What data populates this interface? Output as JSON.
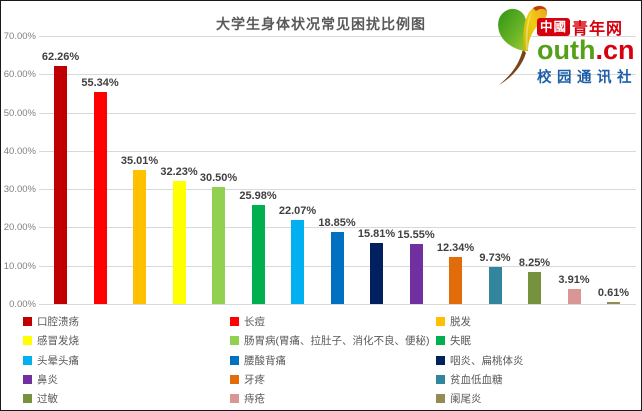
{
  "title": "大学生身体状况常见困扰比例图",
  "logo": {
    "badge_text": "中國",
    "brand_red_text": "青年网",
    "brand_green_text": "outh",
    "brand_domain_text": ".cn",
    "subtitle_text": "校园通讯社",
    "leaf_icon": "ginkgo-leaf-icon",
    "colors": {
      "red": "#d7000f",
      "green": "#55a018",
      "blue": "#1c5fa8"
    }
  },
  "chart_data": {
    "type": "bar",
    "title": "大学生身体状况常见困扰比例图",
    "xlabel": "",
    "ylabel": "",
    "ylim": [
      0,
      70
    ],
    "ytick_labels": [
      "0.00%",
      "10.00%",
      "20.00%",
      "30.00%",
      "40.00%",
      "50.00%",
      "60.00%",
      "70.00%"
    ],
    "grid": true,
    "legend_position": "bottom",
    "legend_columns": 3,
    "categories": [
      "口腔溃疡",
      "长痘",
      "脱发",
      "感冒发烧",
      "肠胃病(胃痛、拉肚子、消化不良、便秘)",
      "失眠",
      "头晕头痛",
      "腰酸背痛",
      "咽炎、扁桃体炎",
      "鼻炎",
      "牙疼",
      "贫血低血糖",
      "过敏",
      "痔疮",
      "阑尾炎"
    ],
    "values": [
      62.26,
      55.34,
      35.01,
      32.23,
      30.5,
      25.98,
      22.07,
      18.85,
      15.81,
      15.55,
      12.34,
      9.73,
      8.25,
      3.91,
      0.61
    ],
    "value_labels": [
      "62.26%",
      "55.34%",
      "35.01%",
      "32.23%",
      "30.50%",
      "25.98%",
      "22.07%",
      "18.85%",
      "15.81%",
      "15.55%",
      "12.34%",
      "9.73%",
      "8.25%",
      "3.91%",
      "0.61%"
    ],
    "bar_colors": [
      "#c00000",
      "#ff0000",
      "#ffc000",
      "#ffff00",
      "#92d050",
      "#00b050",
      "#00b0f0",
      "#0070c0",
      "#002060",
      "#7030a0",
      "#e36c0a",
      "#31859c",
      "#76923c",
      "#d99694",
      "#948a54"
    ]
  }
}
